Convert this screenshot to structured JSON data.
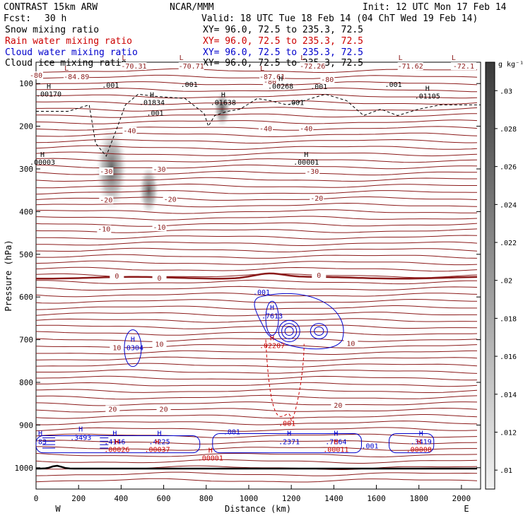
{
  "header": {
    "model": "CONTRAST 15km ARW",
    "center": "NCAR/MMM",
    "init": "Init: 12 UTC Mon 17 Feb 14",
    "fcst_label": "Fcst:",
    "fcst_value": "30 h",
    "valid": "Valid: 18 UTC Tue 18 Feb 14 (04 ChT Wed 19 Feb 14)",
    "fields": [
      {
        "name": "Snow mixing ratio",
        "xy": "XY=  96.0, 72.5 to 235.3, 72.5",
        "color": "#000000"
      },
      {
        "name": "Rain water mixing ratio",
        "xy": "XY=  96.0, 72.5 to 235.3, 72.5",
        "color": "#cc0000"
      },
      {
        "name": "Cloud water mixing ratio",
        "xy": "XY=  96.0, 72.5 to 235.3, 72.5",
        "color": "#0000cc"
      },
      {
        "name": "Cloud ice mixing ratio",
        "xy": "XY=  96.0, 72.5 to 235.3, 72.5",
        "color": "#000000"
      }
    ]
  },
  "chart_data": {
    "type": "cross-section contour",
    "xlabel": "Distance (km)",
    "ylabel": "Pressure (hPa)",
    "xlim": [
      0,
      2090
    ],
    "ylim": [
      1050,
      50
    ],
    "xticks": [
      0,
      200,
      400,
      600,
      800,
      1000,
      1200,
      1400,
      1600,
      1800,
      2000
    ],
    "yticks": [
      100,
      200,
      300,
      400,
      500,
      600,
      700,
      800,
      900,
      1000
    ],
    "x_end_labels": {
      "left": "W",
      "right": "E"
    },
    "colorbar": {
      "unit": "g kg⁻¹",
      "ticks": [
        ".01",
        ".012",
        ".014",
        ".016",
        ".018",
        ".02",
        ".022",
        ".024",
        ".026",
        ".028",
        ".03"
      ],
      "values": [
        0.01,
        0.012,
        0.014,
        0.016,
        0.018,
        0.02,
        0.022,
        0.024,
        0.026,
        0.028,
        0.03
      ]
    },
    "temperature_isotherms": {
      "color": "#8b1a1a",
      "labels": [
        {
          "text": "-80",
          "x": 0,
          "p": 80
        },
        {
          "text": "-80",
          "x": 1100,
          "p": 95
        },
        {
          "text": "-80",
          "x": 1370,
          "p": 90
        },
        {
          "text": "-40",
          "x": 440,
          "p": 210
        },
        {
          "text": "-40",
          "x": 1080,
          "p": 205
        },
        {
          "text": "-40",
          "x": 1270,
          "p": 205
        },
        {
          "text": "-30",
          "x": 330,
          "p": 305
        },
        {
          "text": "-30",
          "x": 580,
          "p": 300
        },
        {
          "text": "-30",
          "x": 1300,
          "p": 305
        },
        {
          "text": "-20",
          "x": 330,
          "p": 372
        },
        {
          "text": "-20",
          "x": 630,
          "p": 370
        },
        {
          "text": "-20",
          "x": 1320,
          "p": 368
        },
        {
          "text": "-10",
          "x": 320,
          "p": 440
        },
        {
          "text": "-10",
          "x": 580,
          "p": 436
        },
        {
          "text": "0",
          "x": 380,
          "p": 550
        },
        {
          "text": "0",
          "x": 580,
          "p": 555
        },
        {
          "text": "0",
          "x": 1330,
          "p": 548
        },
        {
          "text": "10",
          "x": 380,
          "p": 718
        },
        {
          "text": "10",
          "x": 580,
          "p": 710
        },
        {
          "text": "10",
          "x": 1480,
          "p": 708
        },
        {
          "text": "20",
          "x": 360,
          "p": 862
        },
        {
          "text": "20",
          "x": 600,
          "p": 862
        },
        {
          "text": "20",
          "x": 1420,
          "p": 853
        }
      ],
      "extrema": [
        {
          "type": "L",
          "text": "-84.89",
          "x": 190,
          "p": 90
        },
        {
          "type": "L",
          "text": "-70.31",
          "x": 460,
          "p": 65
        },
        {
          "type": "L",
          "text": "-70.71",
          "x": 730,
          "p": 65
        },
        {
          "type": "L",
          "text": "-87.61",
          "x": 1110,
          "p": 90
        },
        {
          "type": "L",
          "text": "-72.26",
          "x": 1300,
          "p": 65
        },
        {
          "type": "L",
          "text": "-71.62",
          "x": 1760,
          "p": 65
        },
        {
          "type": "L",
          "text": "-72.1",
          "x": 2010,
          "p": 65
        }
      ]
    },
    "cloud_ice_maxima": [
      {
        "text": ".00170",
        "x": 0,
        "p": 130
      },
      {
        "text": ".01834",
        "x": 545,
        "p": 150
      },
      {
        "text": ".01638",
        "x": 880,
        "p": 150
      },
      {
        "text": ".00268",
        "x": 1150,
        "p": 112
      },
      {
        "text": ".01105",
        "x": 1840,
        "p": 135
      },
      {
        "text": ".00003",
        "x": 30,
        "p": 290
      },
      {
        "text": ".00001",
        "x": 1270,
        "p": 290
      }
    ],
    "cloud_ice_contour_label": [
      {
        "text": ".001",
        "x": 350,
        "p": 110
      },
      {
        "text": ".001",
        "x": 720,
        "p": 108
      },
      {
        "text": ".001",
        "x": 560,
        "p": 175
      },
      {
        "text": ".001",
        "x": 1220,
        "p": 150
      },
      {
        "text": ".001",
        "x": 1680,
        "p": 108
      },
      {
        "text": ".001",
        "x": 1330,
        "p": 113
      }
    ],
    "cloud_water_maxima": [
      {
        "text": ".7613",
        "x": 1110,
        "p": 650
      },
      {
        "text": ".0304",
        "x": 455,
        "p": 725
      },
      {
        "text": ".3493",
        "x": 210,
        "p": 935
      },
      {
        "text": ".4146",
        "x": 370,
        "p": 945
      },
      {
        "text": ".4225",
        "x": 580,
        "p": 945
      },
      {
        "text": ".2371",
        "x": 1190,
        "p": 945
      },
      {
        "text": ".7664",
        "x": 1410,
        "p": 945
      },
      {
        "text": ".3419",
        "x": 1810,
        "p": 945
      },
      {
        "text": ".83",
        "x": 20,
        "p": 945
      }
    ],
    "cloud_water_contour_label": [
      {
        "text": ".001",
        "x": 1060,
        "p": 595
      },
      {
        "text": ".001",
        "x": 920,
        "p": 922
      },
      {
        "text": ".001",
        "x": 1570,
        "p": 955
      }
    ],
    "rain_maxima": [
      {
        "text": ".02207",
        "x": 1110,
        "p": 720
      },
      {
        "text": ".00026",
        "x": 380,
        "p": 963
      },
      {
        "text": ".00037",
        "x": 570,
        "p": 963
      },
      {
        "text": ".00001",
        "x": 820,
        "p": 983
      },
      {
        "text": ".00011",
        "x": 1410,
        "p": 963
      },
      {
        "text": ".00008",
        "x": 1800,
        "p": 963
      }
    ],
    "rain_contour_label": [
      {
        "text": ".001",
        "x": 1180,
        "p": 902
      }
    ],
    "snow_shading": [
      {
        "x": 355,
        "p": 300,
        "rx": 22,
        "rp": 60,
        "peak": 0.028
      },
      {
        "x": 530,
        "p": 350,
        "rx": 14,
        "rp": 35,
        "peak": 0.024
      },
      {
        "x": 875,
        "p": 160,
        "rx": 12,
        "rp": 25,
        "peak": 0.022
      }
    ]
  }
}
